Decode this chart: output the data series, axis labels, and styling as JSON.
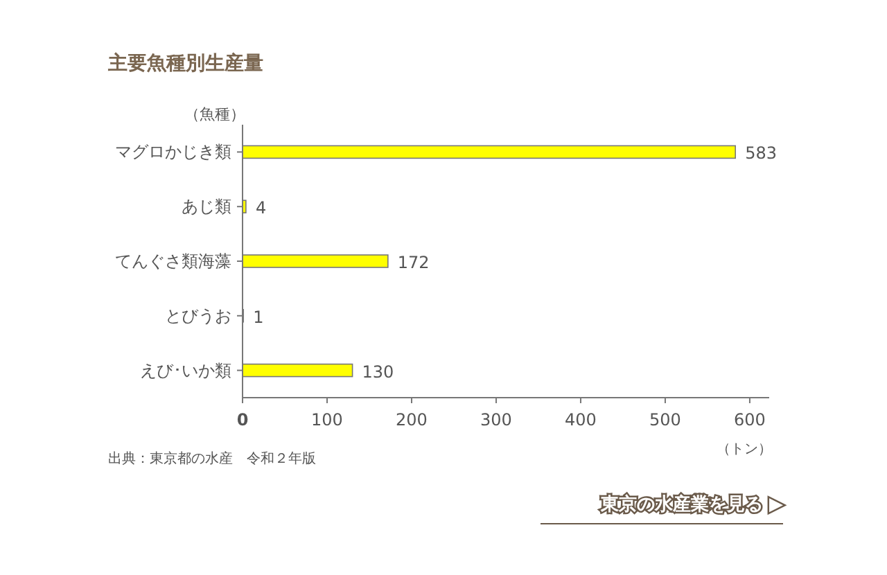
{
  "chart_data": {
    "type": "bar",
    "orientation": "horizontal",
    "title": "主要魚種別生産量",
    "ylabel": "（魚種）",
    "xlabel": "（トン）",
    "categories": [
      "マグロかじき類",
      "あじ類",
      "てんぐさ類海藻",
      "とびうお",
      "えび･いか類"
    ],
    "values": [
      583,
      4,
      172,
      1,
      130
    ],
    "color": "#ffff00",
    "data_labels": true,
    "xlim": [
      0,
      623
    ],
    "xticks": [
      0,
      100,
      200,
      300,
      400,
      500,
      600
    ],
    "annotations": [
      "出典：東京都の水産　令和２年版",
      "東京の水産業を見る ▶"
    ]
  }
}
